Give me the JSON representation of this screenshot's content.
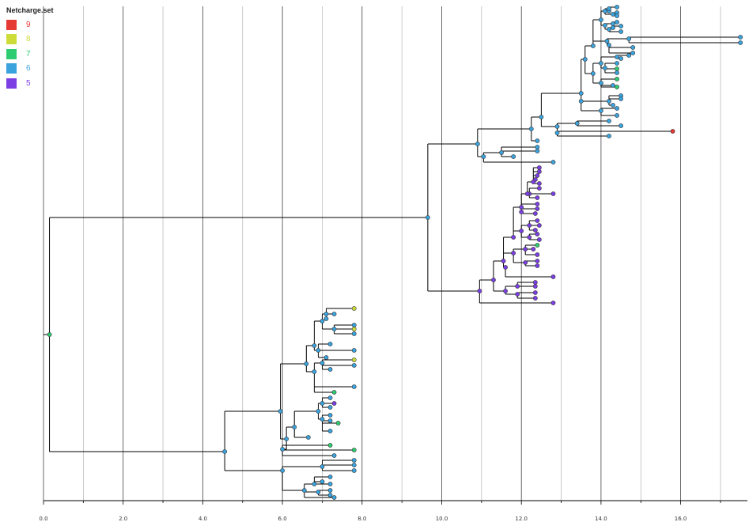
{
  "legend": {
    "title": "Netcharge.set",
    "items": [
      {
        "label": "9",
        "color": "#e53935"
      },
      {
        "label": "8",
        "color": "#cddc39"
      },
      {
        "label": "7",
        "color": "#2ecc71"
      },
      {
        "label": "6",
        "color": "#3aa3dd"
      },
      {
        "label": "5",
        "color": "#7b3fe4"
      }
    ]
  },
  "axis": {
    "ticks": [
      "0.0",
      "2.0",
      "4.0",
      "6.0",
      "8.0",
      "10.0",
      "12.0",
      "14.0",
      "16.0"
    ],
    "tick_values": [
      0,
      2,
      4,
      6,
      8,
      10,
      12,
      14,
      16
    ],
    "range": [
      0,
      17.7
    ]
  },
  "colors": {
    "nine": "#e53935",
    "eight": "#cddc39",
    "seven": "#2ecc71",
    "six": "#3aa3dd",
    "five": "#7b3fe4",
    "branch": "#000000",
    "gridline_major": "#444444",
    "gridline_minor": "#b0b0b0"
  }
}
